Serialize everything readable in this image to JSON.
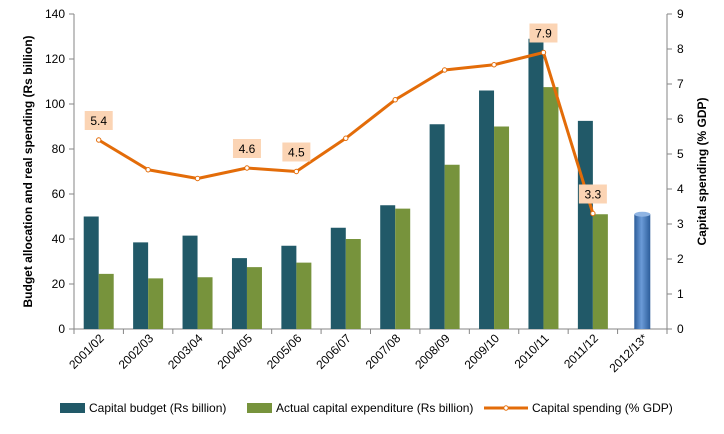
{
  "chart_data": {
    "type": "bar",
    "categories": [
      "2001/02",
      "2002/03",
      "2003/04",
      "2004/05",
      "2005/06",
      "2006/07",
      "2007/08",
      "2008/09",
      "2009/10",
      "2010/11",
      "2011/12",
      "2012/13*"
    ],
    "series": [
      {
        "name": "Capital budget (Rs billion)",
        "axis": "left",
        "color": "#215968",
        "values": [
          50,
          38.5,
          41.5,
          31.5,
          37,
          45,
          55,
          91,
          106,
          129,
          92.5,
          null
        ]
      },
      {
        "name": "Actual capital expenditure (Rs billion)",
        "axis": "left",
        "color": "#77933c",
        "values": [
          24.5,
          22.5,
          23,
          27.5,
          29.5,
          40,
          53.5,
          73,
          90,
          107.5,
          51,
          null
        ]
      },
      {
        "name": "Capital spending (% GDP)",
        "axis": "right",
        "type": "line",
        "color": "#e36c09",
        "values": [
          5.4,
          4.55,
          4.3,
          4.6,
          4.5,
          5.45,
          6.55,
          7.4,
          7.55,
          7.9,
          3.3,
          null
        ]
      }
    ],
    "projection": {
      "category": "2012/13*",
      "value": 51,
      "color": "#4f81bd"
    },
    "data_labels": [
      {
        "index": 0,
        "text": "5.4"
      },
      {
        "index": 3,
        "text": "4.6"
      },
      {
        "index": 4,
        "text": "4.5"
      },
      {
        "index": 9,
        "text": "7.9"
      },
      {
        "index": 10,
        "text": "3.3"
      }
    ],
    "ylabel": "Budget allocation and real spending (Rs billion)",
    "y2label": "Capital spending (% GDP)",
    "ylim": [
      0,
      140
    ],
    "yticks": [
      "0",
      "20",
      "40",
      "60",
      "80",
      "100",
      "120",
      "140"
    ],
    "y2lim": [
      0,
      9
    ],
    "y2ticks": [
      "0",
      "1",
      "2",
      "3",
      "4",
      "5",
      "6",
      "7",
      "8",
      "9"
    ],
    "legend_position": "bottom"
  }
}
